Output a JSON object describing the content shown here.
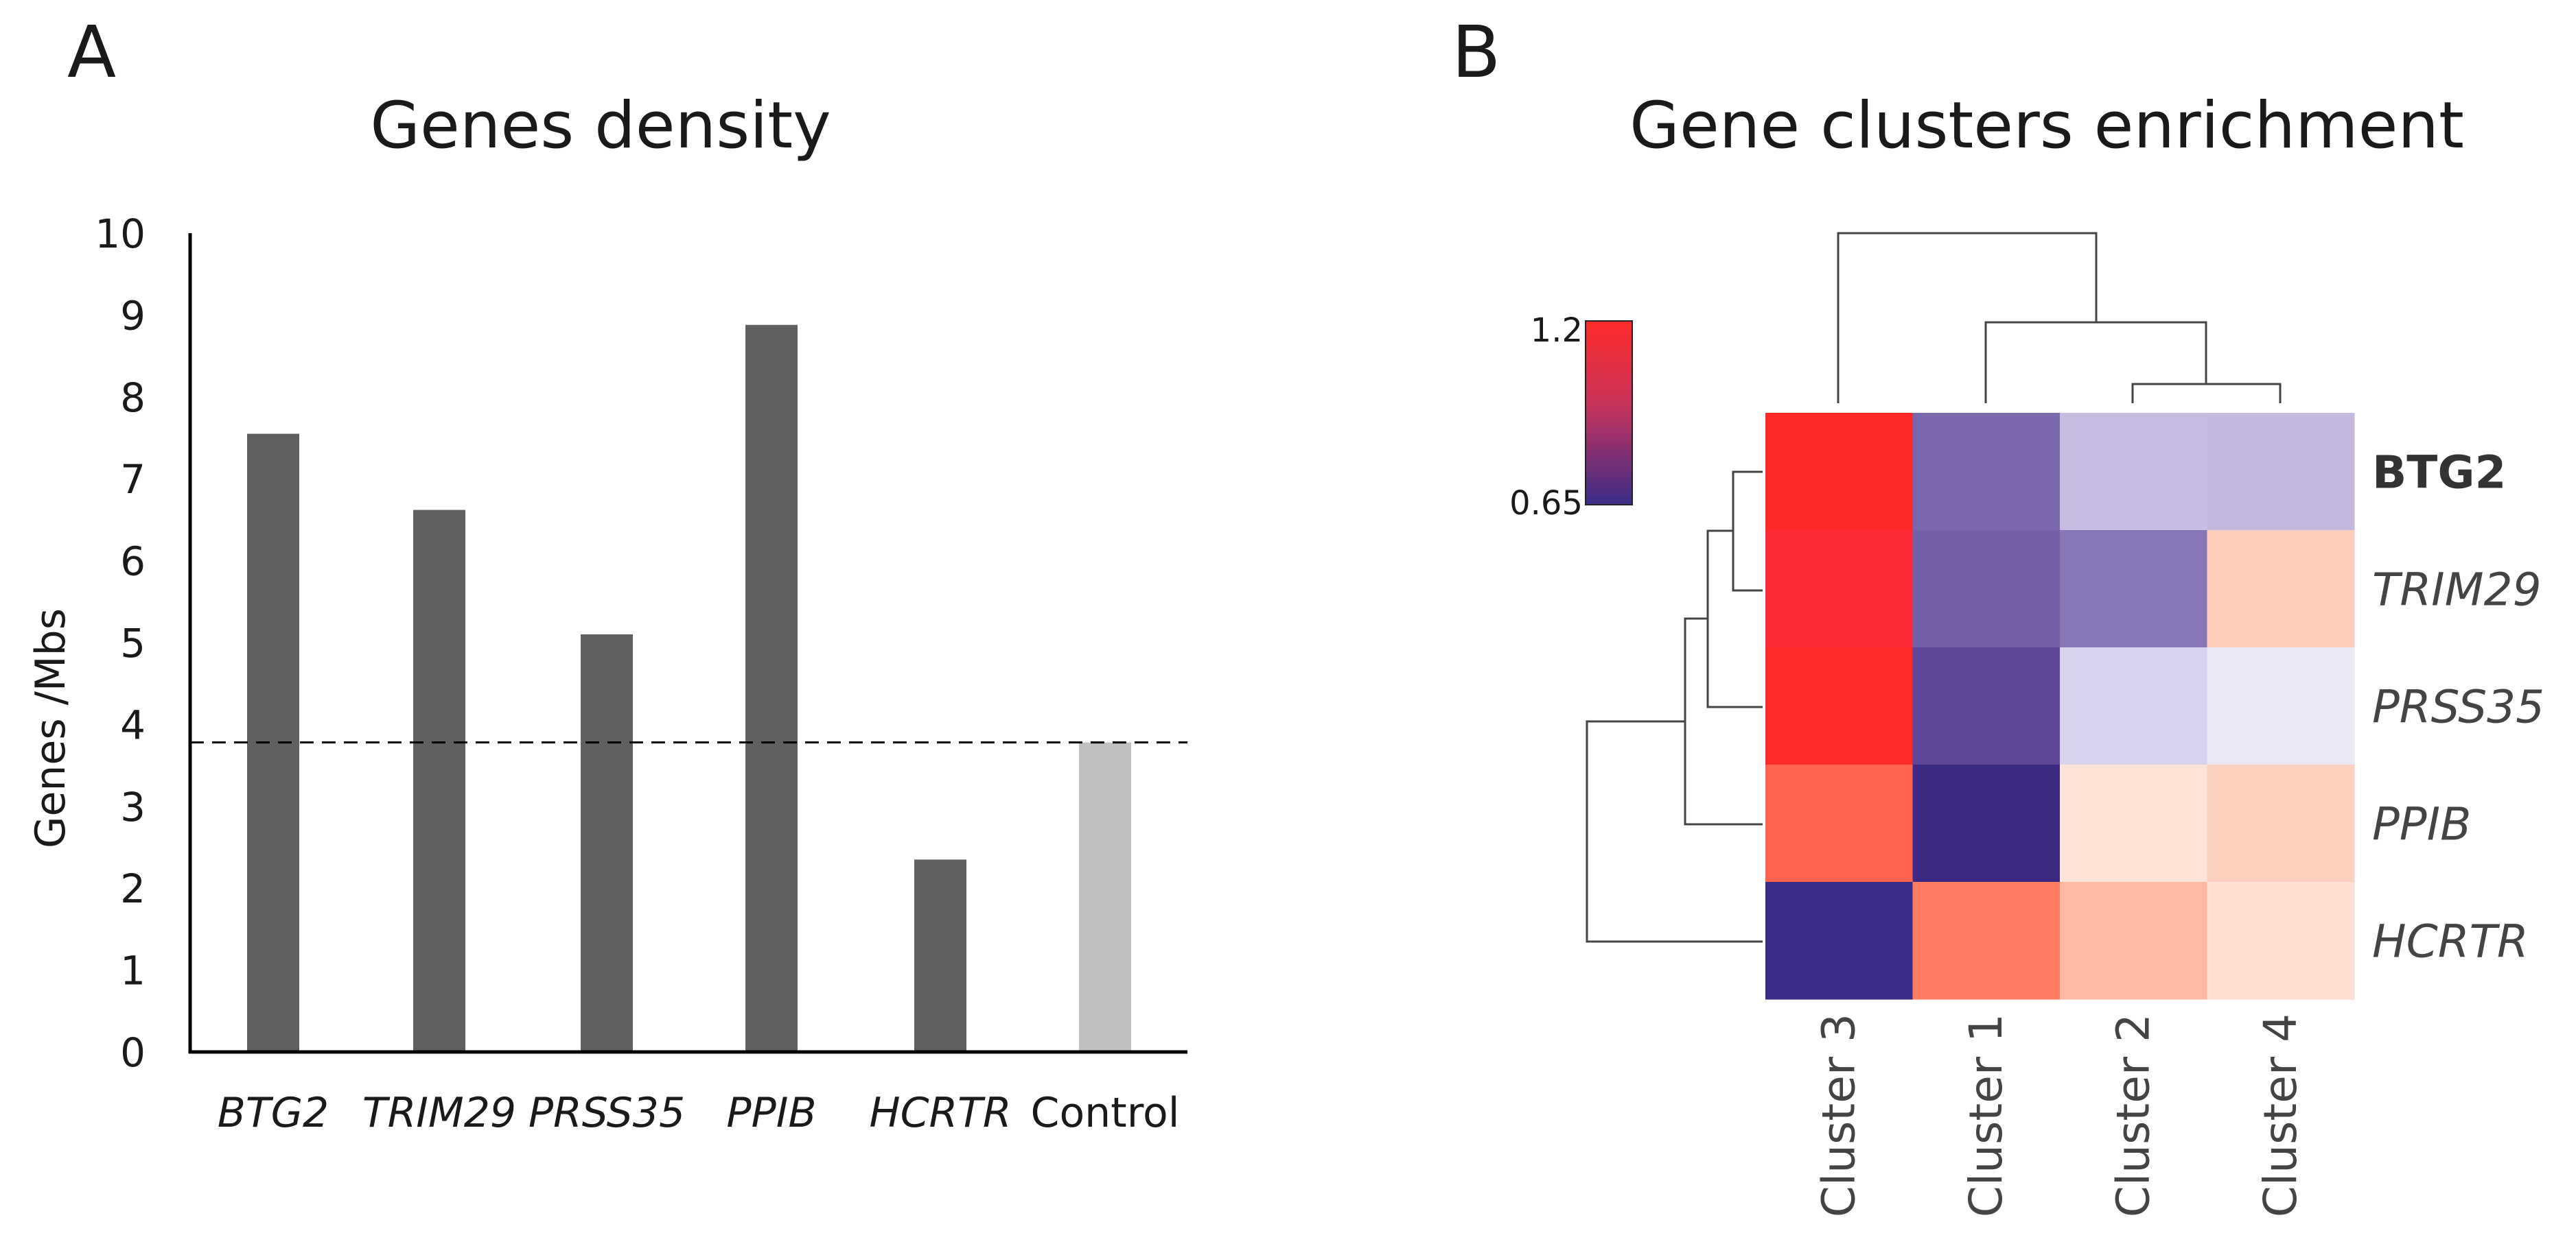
{
  "panels": {
    "a_letter": "A",
    "b_letter": "B"
  },
  "chart_data": [
    {
      "type": "bar",
      "title": "Genes density",
      "xlabel": "",
      "ylabel": "Genes  /Mbs",
      "ylim": [
        0,
        10
      ],
      "yticks": [
        "0",
        "1",
        "2",
        "3",
        "4",
        "5",
        "6",
        "7",
        "8",
        "9",
        "10"
      ],
      "categories": [
        "BTG2",
        "TRIM29",
        "PRSS35",
        "PPIB",
        "HCRTR",
        "Control"
      ],
      "italic_categories": [
        "BTG2",
        "TRIM29",
        "PRSS35",
        "PPIB",
        "HCRTR"
      ],
      "values": [
        7.55,
        6.62,
        5.1,
        8.88,
        2.35,
        3.78
      ],
      "bar_colors": [
        "#606060",
        "#606060",
        "#606060",
        "#606060",
        "#606060",
        "#c0c0c0"
      ],
      "reference_line": {
        "value": 3.78,
        "style": "dashed"
      },
      "grid": false
    },
    {
      "type": "heatmap",
      "title": "Gene clusters enrichment",
      "rows": [
        "BTG2",
        "TRIM29",
        "PRSS35",
        "PPIB",
        "HCRTR"
      ],
      "bold_rows": [
        "BTG2"
      ],
      "columns": [
        "Cluster 3",
        "Cluster 1",
        "Cluster 2",
        "Cluster 4"
      ],
      "cell_colors": [
        [
          "#ff2828",
          "#7b68ac",
          "#c7bde0",
          "#c4b8de"
        ],
        [
          "#ff2a38",
          "#7461a8",
          "#8877b6",
          "#fdcdbc"
        ],
        [
          "#ff2b2b",
          "#5e4796",
          "#d8d2ec",
          "#eae8f4"
        ],
        [
          "#ff6450",
          "#3c2a82",
          "#fde3d8",
          "#fdcfbf"
        ],
        [
          "#3c2b86",
          "#ff7b62",
          "#fdb9a4",
          "#fde0d2"
        ]
      ],
      "colorbar": {
        "max_label": "1.2",
        "min_label": "0.65",
        "high_color": "#ff2b2b",
        "low_color": "#3a2d88"
      },
      "column_dendrogram": "((Cluster 3),((Cluster 1),(Cluster 2, Cluster 4)))",
      "row_dendrogram": "(((BTG2, TRIM29), PRSS35), PPIB), HCRTR"
    }
  ]
}
